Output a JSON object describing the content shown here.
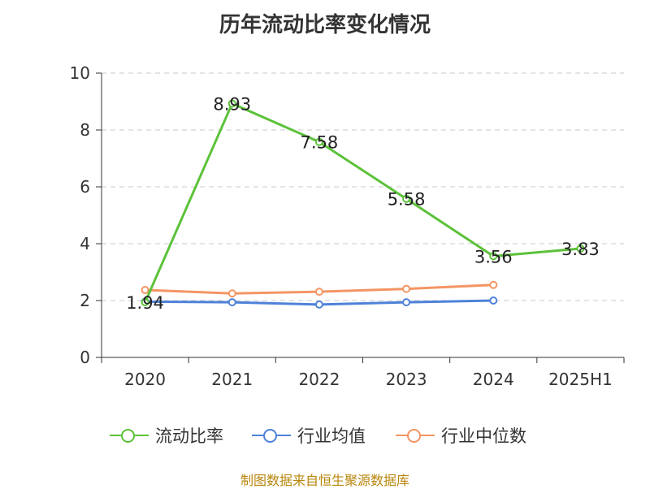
{
  "chart_data": {
    "type": "line",
    "title": "历年流动比率变化情况",
    "categories": [
      "2020",
      "2021",
      "2022",
      "2023",
      "2024",
      "2025H1"
    ],
    "ylim": [
      0,
      10
    ],
    "yticks": [
      0,
      2,
      4,
      6,
      8,
      10
    ],
    "grid": true,
    "legend_position": "bottom",
    "series": [
      {
        "name": "流动比率",
        "color": "#5cc23a",
        "values": [
          1.94,
          8.93,
          7.58,
          5.58,
          3.56,
          3.83
        ],
        "labels": [
          "1.94",
          "8.93",
          "7.58",
          "5.58",
          "3.56",
          "3.83"
        ]
      },
      {
        "name": "行业均值",
        "color": "#4e82d9",
        "values": [
          1.96,
          1.94,
          1.86,
          1.94,
          2.0,
          null
        ]
      },
      {
        "name": "行业中位数",
        "color": "#f49563",
        "values": [
          2.37,
          2.25,
          2.31,
          2.41,
          2.55,
          null
        ]
      }
    ]
  },
  "source": "制图数据来自恒生聚源数据库"
}
